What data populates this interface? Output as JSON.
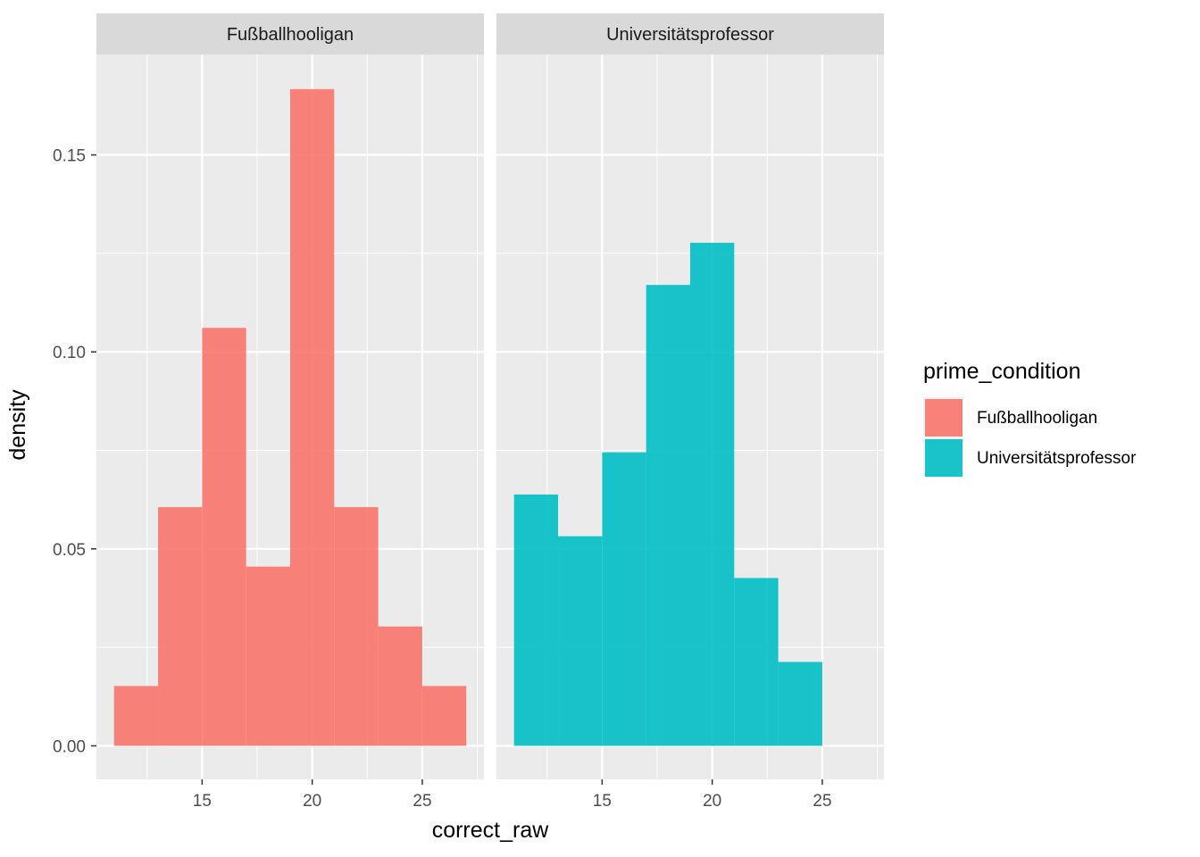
{
  "chart_data": {
    "type": "bar",
    "subtype": "faceted-histogram",
    "xlabel": "correct_raw",
    "ylabel": "density",
    "xlim": [
      10.2,
      27.8
    ],
    "ylim": [
      -0.0085,
      0.1755
    ],
    "x_ticks": [
      15,
      20,
      25
    ],
    "x_tick_labels": [
      "15",
      "20",
      "25"
    ],
    "y_ticks": [
      0.0,
      0.05,
      0.1,
      0.15
    ],
    "y_tick_labels": [
      "0.00",
      "0.05",
      "0.10",
      "0.15"
    ],
    "bin_width": 2,
    "grid": true,
    "legend": {
      "title": "prime_condition",
      "position": "right",
      "entries": [
        {
          "label": "Fußballhooligan",
          "color": "#F8766D"
        },
        {
          "label": "Universitätsprofessor",
          "color": "#00BFC4"
        }
      ]
    },
    "panels": [
      {
        "strip": "Fußballhooligan",
        "color": "#F8766D",
        "bins": [
          {
            "x0": 11,
            "x1": 13,
            "density": 0.0152
          },
          {
            "x0": 13,
            "x1": 15,
            "density": 0.0606
          },
          {
            "x0": 15,
            "x1": 17,
            "density": 0.1061
          },
          {
            "x0": 17,
            "x1": 19,
            "density": 0.0455
          },
          {
            "x0": 19,
            "x1": 21,
            "density": 0.1667
          },
          {
            "x0": 21,
            "x1": 23,
            "density": 0.0606
          },
          {
            "x0": 23,
            "x1": 25,
            "density": 0.0303
          },
          {
            "x0": 25,
            "x1": 27,
            "density": 0.0152
          }
        ]
      },
      {
        "strip": "Universitätsprofessor",
        "color": "#00BFC4",
        "bins": [
          {
            "x0": 11,
            "x1": 13,
            "density": 0.0638
          },
          {
            "x0": 13,
            "x1": 15,
            "density": 0.0532
          },
          {
            "x0": 15,
            "x1": 17,
            "density": 0.0745
          },
          {
            "x0": 17,
            "x1": 19,
            "density": 0.117
          },
          {
            "x0": 19,
            "x1": 21,
            "density": 0.1277
          },
          {
            "x0": 21,
            "x1": 23,
            "density": 0.0426
          },
          {
            "x0": 23,
            "x1": 25,
            "density": 0.0213
          }
        ]
      }
    ]
  }
}
